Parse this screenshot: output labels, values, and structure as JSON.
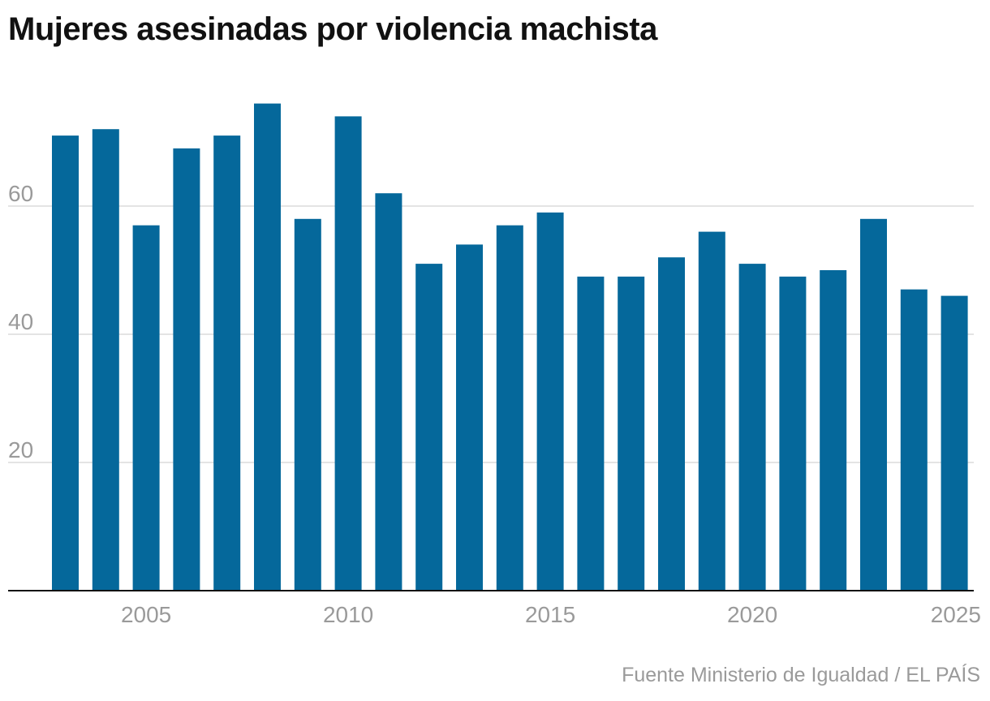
{
  "title": "Mujeres asesinadas por violencia machista",
  "source": "Fuente Ministerio de Igualdad / EL PAÍS",
  "colors": {
    "bar": "#05689b",
    "grid": "#dcdcdc",
    "axis": "#111111",
    "tick_text": "#9a9a9a"
  },
  "chart_data": {
    "type": "bar",
    "title": "Mujeres asesinadas por violencia machista",
    "xlabel": "",
    "ylabel": "",
    "ylim": [
      0,
      80
    ],
    "grid": true,
    "x": [
      2003,
      2004,
      2005,
      2006,
      2007,
      2008,
      2009,
      2010,
      2011,
      2012,
      2013,
      2014,
      2015,
      2016,
      2017,
      2018,
      2019,
      2020,
      2021,
      2022,
      2023,
      2024,
      2025
    ],
    "values": [
      71,
      72,
      57,
      69,
      71,
      76,
      58,
      74,
      62,
      51,
      54,
      57,
      59,
      49,
      49,
      52,
      56,
      51,
      49,
      50,
      58,
      47,
      46
    ],
    "y_ticks": [
      20,
      40,
      60
    ],
    "x_ticks": [
      2005,
      2010,
      2015,
      2020,
      2025
    ]
  }
}
